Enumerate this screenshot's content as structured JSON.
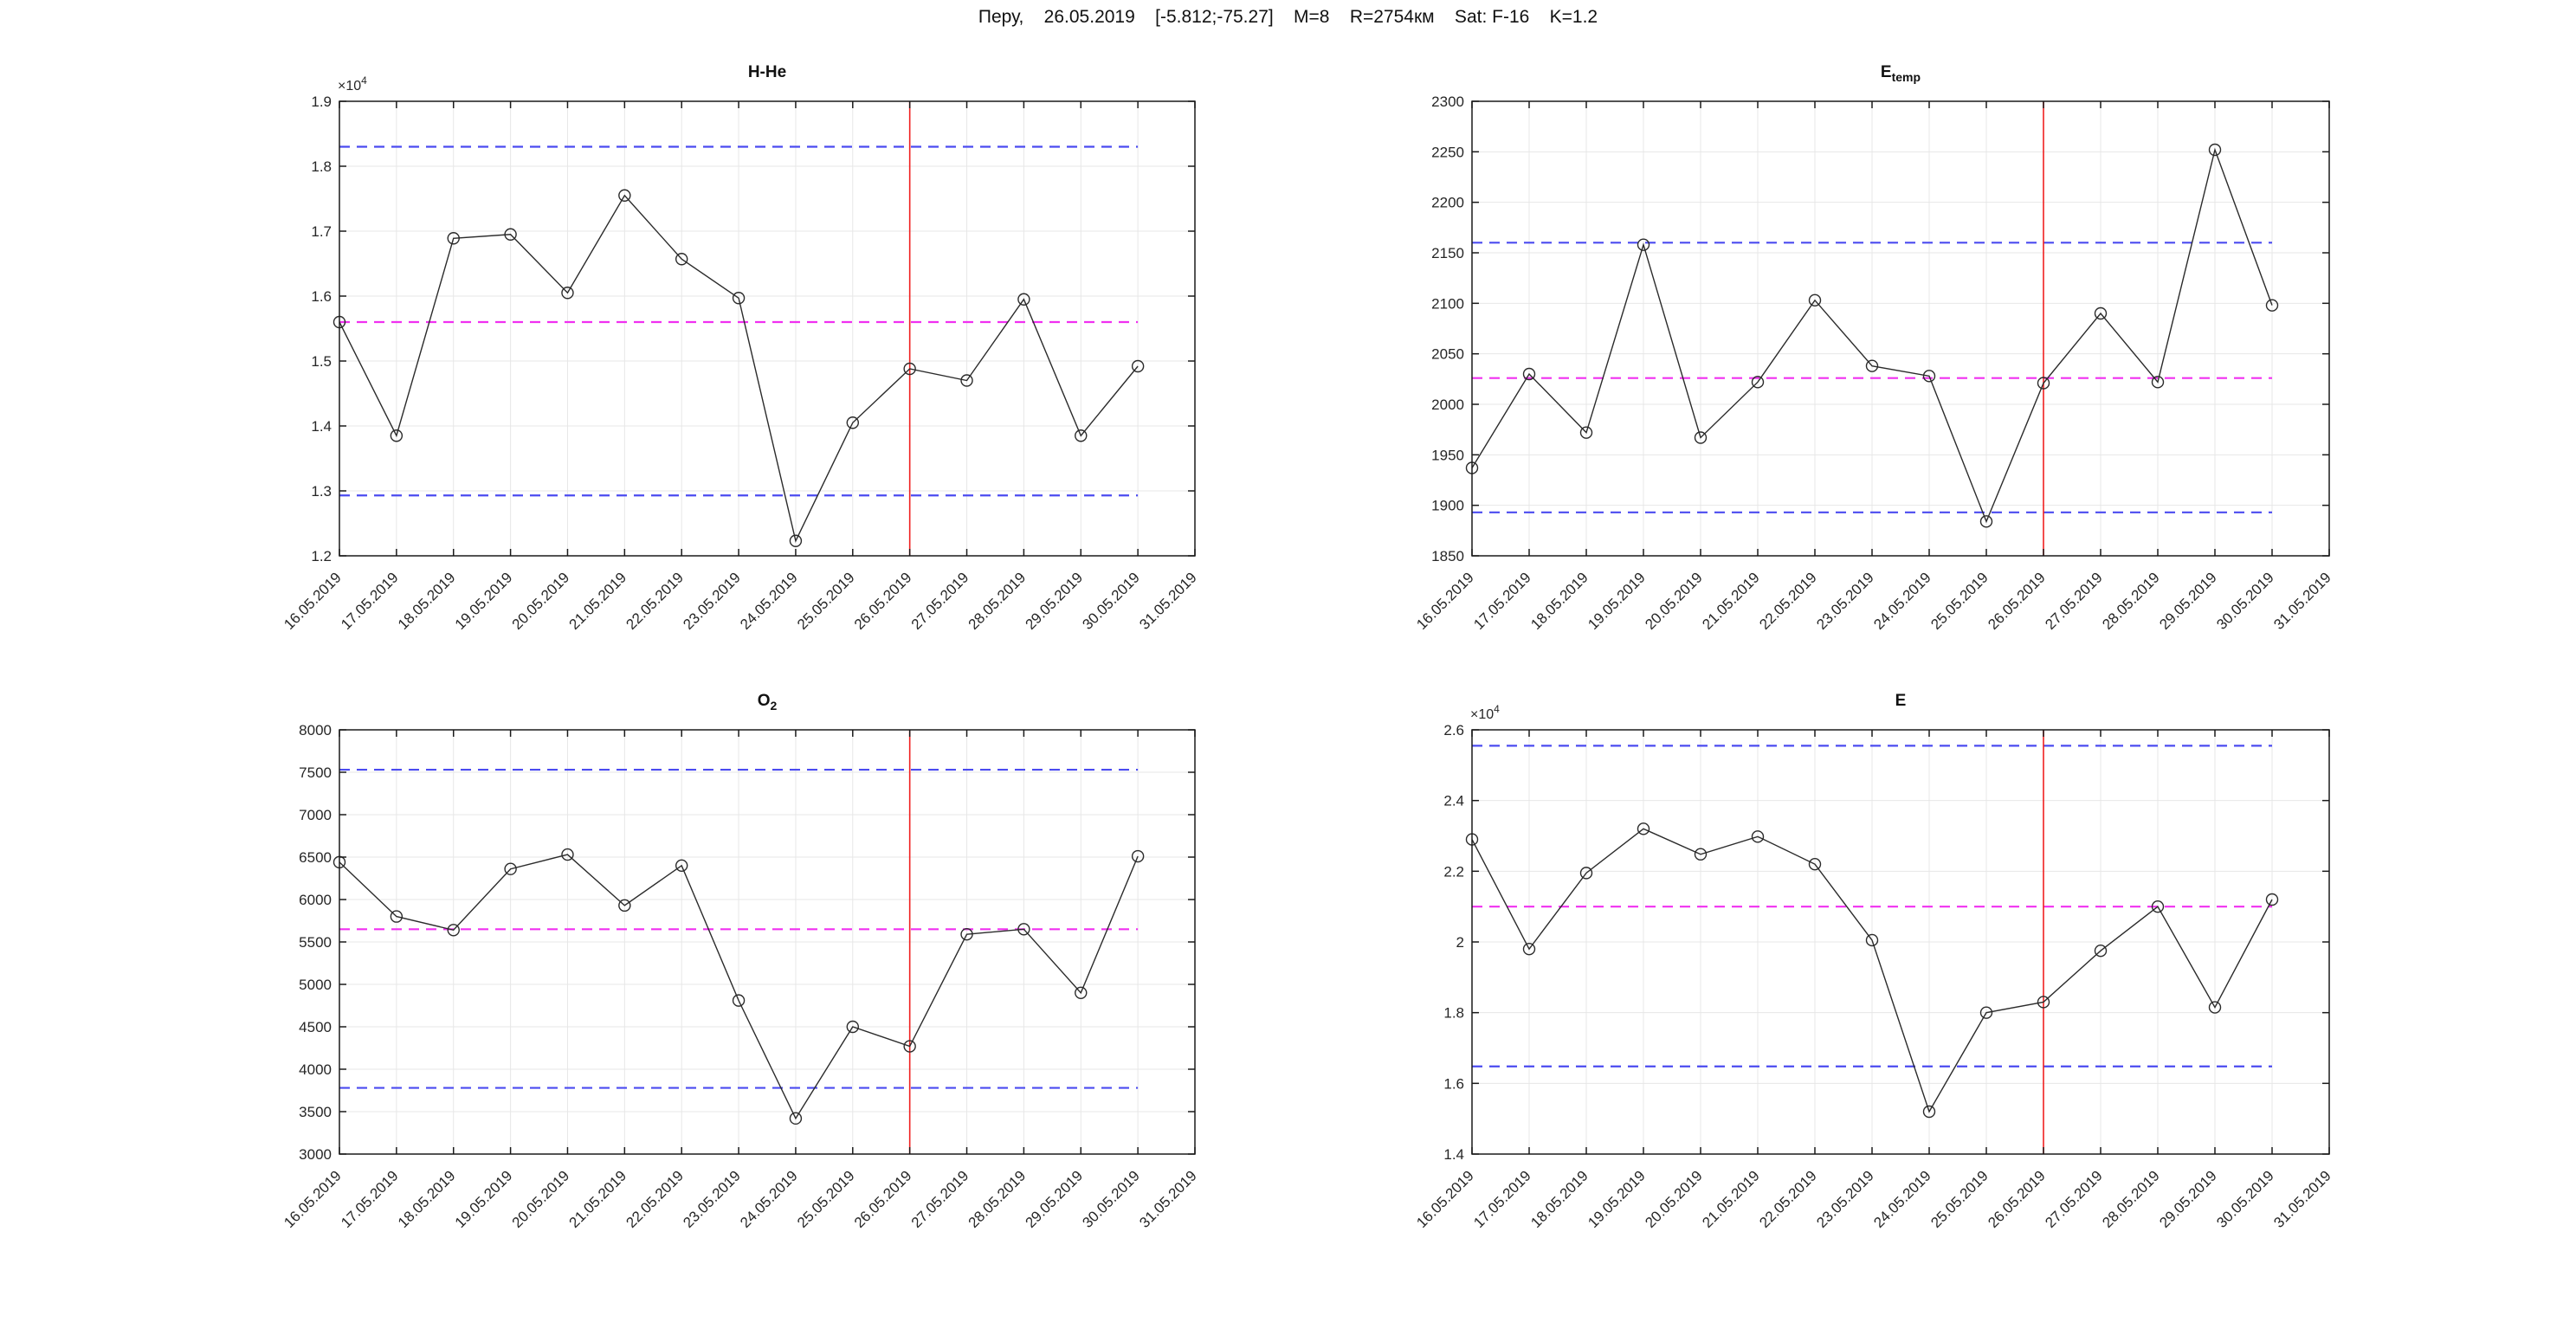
{
  "figure_title": "Перу,    26.05.2019    [-5.812;-75.27]    M=8    R=2754км    Sat: F-16    K=1.2",
  "event_date": "26.05.2019",
  "x_tick_labels": [
    "16.05.2019",
    "17.05.2019",
    "18.05.2019",
    "19.05.2019",
    "20.05.2019",
    "21.05.2019",
    "22.05.2019",
    "23.05.2019",
    "24.05.2019",
    "25.05.2019",
    "26.05.2019",
    "27.05.2019",
    "28.05.2019",
    "29.05.2019",
    "30.05.2019",
    "31.05.2019"
  ],
  "palette": {
    "bound_line": "#4b4bf0",
    "mean_line": "#f030f0",
    "event_line": "#f02020",
    "series_line": "#2b2b2b",
    "grid_line": "#e7e7e7",
    "axis_line": "#1a1a1a",
    "tick_text": "#262626"
  },
  "chart_data": [
    {
      "key": "h-he",
      "type": "line",
      "title": "H-He",
      "title_sub": "",
      "exponent_label": "×10",
      "exponent_power": "4",
      "ylim": [
        12000,
        19000
      ],
      "ytick_values": [
        12000,
        13000,
        14000,
        15000,
        16000,
        17000,
        18000,
        19000
      ],
      "ytick_labels": [
        "1.2",
        "1.3",
        "1.4",
        "1.5",
        "1.6",
        "1.7",
        "1.8",
        "1.9"
      ],
      "x": [
        "16.05.2019",
        "17.05.2019",
        "18.05.2019",
        "19.05.2019",
        "20.05.2019",
        "21.05.2019",
        "22.05.2019",
        "23.05.2019",
        "24.05.2019",
        "25.05.2019",
        "26.05.2019",
        "27.05.2019",
        "28.05.2019",
        "29.05.2019",
        "30.05.2019"
      ],
      "values": [
        15600,
        13850,
        16890,
        16950,
        16050,
        17550,
        16570,
        15970,
        12230,
        14050,
        14880,
        14700,
        15950,
        13850,
        14920
      ],
      "upper_bound": 18300,
      "lower_bound": 12930,
      "mean_value": 15600,
      "event_index": 10
    },
    {
      "key": "e-temp",
      "type": "line",
      "title": "E",
      "title_sub": "temp",
      "exponent_label": "",
      "exponent_power": "",
      "ylim": [
        1850,
        2300
      ],
      "ytick_values": [
        1850,
        1900,
        1950,
        2000,
        2050,
        2100,
        2150,
        2200,
        2250,
        2300
      ],
      "ytick_labels": [
        "1850",
        "1900",
        "1950",
        "2000",
        "2050",
        "2100",
        "2150",
        "2200",
        "2250",
        "2300"
      ],
      "x": [
        "16.05.2019",
        "17.05.2019",
        "18.05.2019",
        "19.05.2019",
        "20.05.2019",
        "21.05.2019",
        "22.05.2019",
        "23.05.2019",
        "24.05.2019",
        "25.05.2019",
        "26.05.2019",
        "27.05.2019",
        "28.05.2019",
        "29.05.2019",
        "30.05.2019"
      ],
      "values": [
        1937,
        2030,
        1972,
        2158,
        1967,
        2022,
        2103,
        2038,
        2028,
        1884,
        2021,
        2090,
        2022,
        2252,
        2098
      ],
      "upper_bound": 2160,
      "lower_bound": 1893,
      "mean_value": 2026,
      "event_index": 10
    },
    {
      "key": "o2",
      "type": "line",
      "title": "O",
      "title_sub": "2",
      "exponent_label": "",
      "exponent_power": "",
      "ylim": [
        3000,
        8000
      ],
      "ytick_values": [
        3000,
        3500,
        4000,
        4500,
        5000,
        5500,
        6000,
        6500,
        7000,
        7500,
        8000
      ],
      "ytick_labels": [
        "3000",
        "3500",
        "4000",
        "4500",
        "5000",
        "5500",
        "6000",
        "6500",
        "7000",
        "7500",
        "8000"
      ],
      "x": [
        "16.05.2019",
        "17.05.2019",
        "18.05.2019",
        "19.05.2019",
        "20.05.2019",
        "21.05.2019",
        "22.05.2019",
        "23.05.2019",
        "24.05.2019",
        "25.05.2019",
        "26.05.2019",
        "27.05.2019",
        "28.05.2019",
        "29.05.2019",
        "30.05.2019"
      ],
      "values": [
        6440,
        5800,
        5640,
        6360,
        6530,
        5930,
        6400,
        4810,
        3420,
        4500,
        4270,
        5590,
        5650,
        4900,
        6510
      ],
      "upper_bound": 7530,
      "lower_bound": 3780,
      "mean_value": 5650,
      "event_index": 10
    },
    {
      "key": "e",
      "type": "line",
      "title": "E",
      "title_sub": "",
      "exponent_label": "×10",
      "exponent_power": "4",
      "ylim": [
        14000,
        26000
      ],
      "ytick_values": [
        14000,
        16000,
        18000,
        20000,
        22000,
        24000,
        26000
      ],
      "ytick_labels": [
        "1.4",
        "1.6",
        "1.8",
        "2",
        "2.2",
        "2.4",
        "2.6"
      ],
      "x": [
        "16.05.2019",
        "17.05.2019",
        "18.05.2019",
        "19.05.2019",
        "20.05.2019",
        "21.05.2019",
        "22.05.2019",
        "23.05.2019",
        "24.05.2019",
        "25.05.2019",
        "26.05.2019",
        "27.05.2019",
        "28.05.2019",
        "29.05.2019",
        "30.05.2019"
      ],
      "values": [
        22900,
        19800,
        21950,
        23200,
        22480,
        22980,
        22200,
        20050,
        15200,
        18000,
        18300,
        19750,
        21000,
        18150,
        21200
      ],
      "upper_bound": 25550,
      "lower_bound": 16480,
      "mean_value": 21000,
      "event_index": 10
    }
  ]
}
